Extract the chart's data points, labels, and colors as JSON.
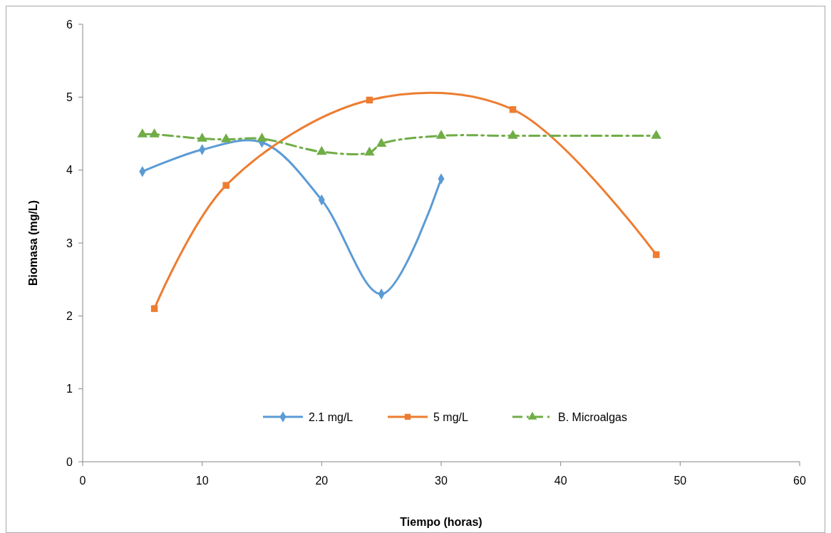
{
  "chart_data": {
    "type": "line",
    "xlabel": "Tiempo (horas)",
    "ylabel": "Biomasa (mg/L)",
    "xlim": [
      0,
      60
    ],
    "xticks": [
      0,
      10,
      20,
      30,
      40,
      50,
      60
    ],
    "ylim": [
      0,
      6
    ],
    "yticks": [
      0,
      1,
      2,
      3,
      4,
      5,
      6
    ],
    "grid": false,
    "legend": "bottom",
    "series": [
      {
        "name": "2.1 mg/L",
        "color": "#5b9bd5",
        "marker": "diamond",
        "line_style": "solid",
        "x": [
          5,
          10,
          15,
          20,
          25,
          30
        ],
        "values": [
          3.98,
          4.28,
          4.38,
          3.59,
          2.3,
          3.88
        ]
      },
      {
        "name": "5 mg/L",
        "color": "#ed7d31",
        "marker": "square",
        "line_style": "solid",
        "x": [
          6,
          12,
          24,
          36,
          48
        ],
        "values": [
          2.1,
          3.79,
          4.96,
          4.83,
          2.84
        ]
      },
      {
        "name": "B. Microalgas",
        "color": "#70ad47",
        "marker": "triangle",
        "line_style": "dashed",
        "x": [
          5,
          6,
          10,
          12,
          15,
          20,
          24,
          25,
          30,
          36,
          48
        ],
        "values": [
          4.49,
          4.49,
          4.43,
          4.42,
          4.43,
          4.25,
          4.24,
          4.36,
          4.47,
          4.47,
          4.47
        ]
      }
    ]
  }
}
